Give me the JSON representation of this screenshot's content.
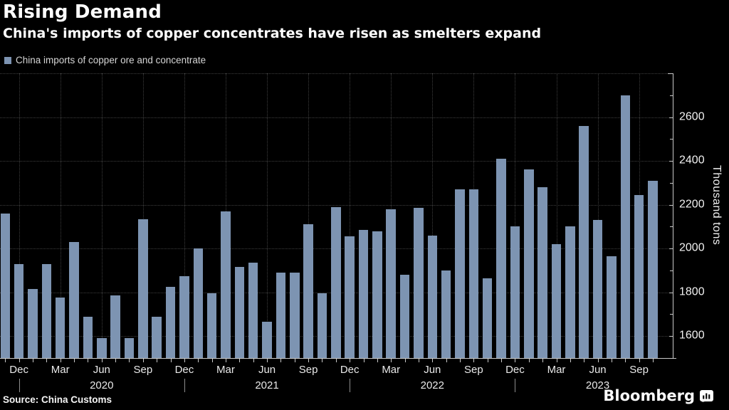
{
  "header": {
    "title": "Rising Demand",
    "subtitle": "China's imports of copper concentrates have risen as smelters expand"
  },
  "legend": {
    "label": "China imports of copper ore and concentrate",
    "swatch_color": "#7d94b2"
  },
  "source": {
    "text": "Source: China Customs"
  },
  "branding": {
    "logo_text": "Bloomberg",
    "logo_icon": "bloomberg-chart-bubble-icon"
  },
  "chart_data": {
    "type": "bar",
    "title": "Rising Demand",
    "subtitle": "China's imports of copper concentrates have risen as smelters expand",
    "series_name": "China imports of copper ore and concentrate",
    "ylabel": "Thousand tons",
    "unit": "thousand tons",
    "ylim": [
      1500,
      2800
    ],
    "yticks": [
      1600,
      1800,
      2000,
      2200,
      2400,
      2600
    ],
    "ygrid": [
      1600,
      1800,
      2000,
      2200,
      2400,
      2600,
      2800
    ],
    "y_minor_tick_step": 100,
    "grid": "dotted horizontal at yticks and dotted vertical at quarter months",
    "legend_position": "top-left",
    "bar_color": "#7d94b2",
    "background_color": "#000000",
    "x_labeled_months": [
      "Dec",
      "Mar",
      "Jun",
      "Sep"
    ],
    "year_labels": [
      "2020",
      "2021",
      "2022",
      "2023"
    ],
    "x": [
      "Nov 2019",
      "Dec 2019",
      "Jan 2020",
      "Feb 2020",
      "Mar 2020",
      "Apr 2020",
      "May 2020",
      "Jun 2020",
      "Jul 2020",
      "Aug 2020",
      "Sep 2020",
      "Oct 2020",
      "Nov 2020",
      "Dec 2020",
      "Jan 2021",
      "Feb 2021",
      "Mar 2021",
      "Apr 2021",
      "May 2021",
      "Jun 2021",
      "Jul 2021",
      "Aug 2021",
      "Sep 2021",
      "Oct 2021",
      "Nov 2021",
      "Dec 2021",
      "Jan 2022",
      "Feb 2022",
      "Mar 2022",
      "Apr 2022",
      "May 2022",
      "Jun 2022",
      "Jul 2022",
      "Aug 2022",
      "Sep 2022",
      "Oct 2022",
      "Nov 2022",
      "Dec 2022",
      "Jan 2023",
      "Feb 2023",
      "Mar 2023",
      "Apr 2023",
      "May 2023",
      "Jun 2023",
      "Jul 2023",
      "Aug 2023",
      "Sep 2023",
      "Oct 2023"
    ],
    "values": [
      2160,
      1930,
      1815,
      1930,
      1775,
      2030,
      1690,
      1590,
      1785,
      1590,
      2135,
      1690,
      1825,
      1875,
      2000,
      1795,
      2170,
      1915,
      1935,
      1665,
      1890,
      1890,
      2110,
      1795,
      2190,
      2055,
      2085,
      2080,
      2180,
      1880,
      2185,
      2060,
      1900,
      2270,
      2270,
      1865,
      2410,
      2100,
      2360,
      2280,
      2020,
      2100,
      2560,
      2130,
      1965,
      2700,
      2245,
      2310
    ]
  }
}
